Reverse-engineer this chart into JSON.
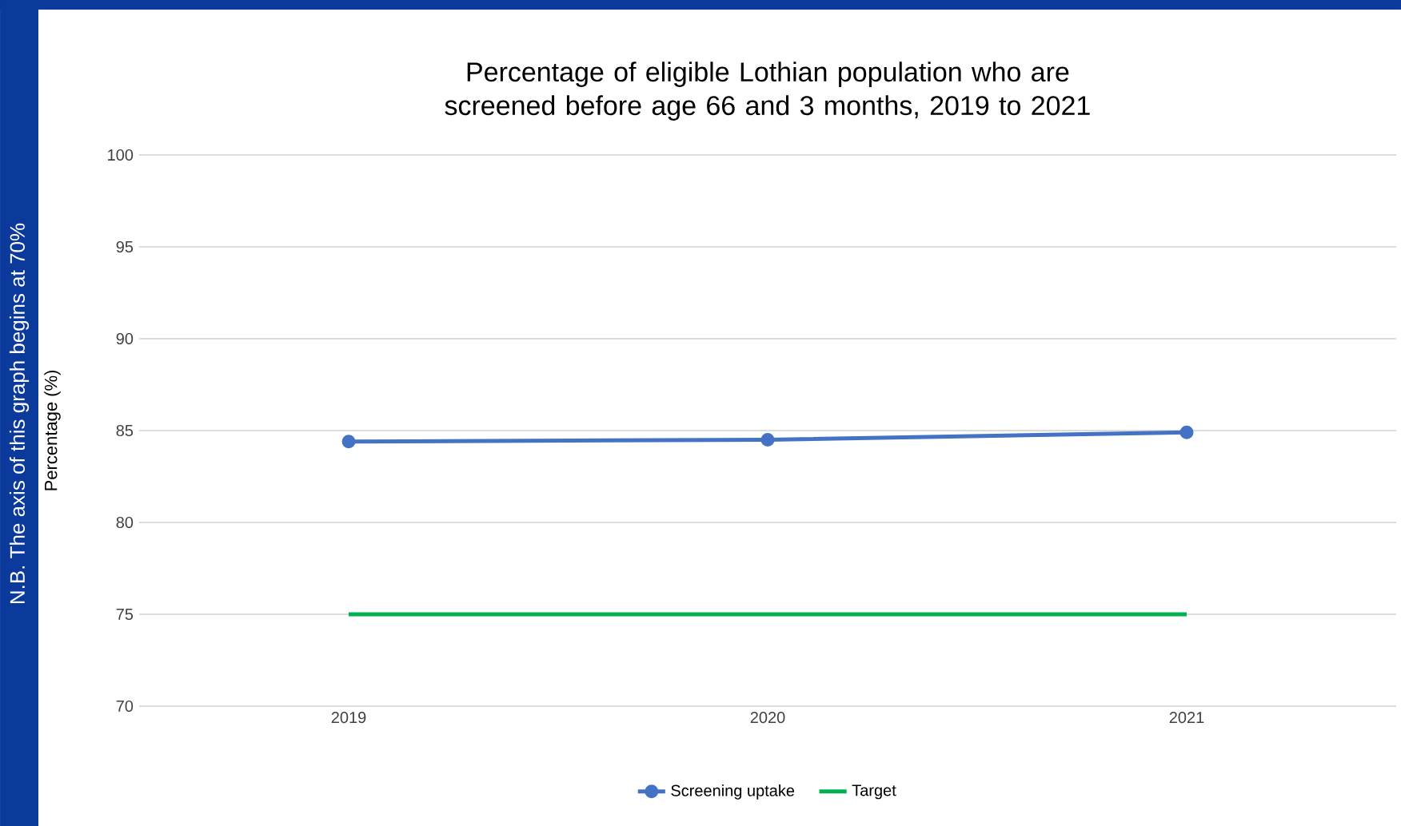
{
  "chart_data": {
    "type": "line",
    "title": "Percentage of eligible Lothian population who are screened before age 66 and 3 months, 2019 to 2021",
    "ylabel": "Percentage (%)",
    "annotations": [
      "N.B. The axis of this graph begins at 70%"
    ],
    "categories": [
      "2019",
      "2020",
      "2021"
    ],
    "series": [
      {
        "name": "Screening uptake",
        "color": "#4472c4",
        "values": [
          84.4,
          84.5,
          84.9
        ],
        "marker": "circle"
      },
      {
        "name": "Target",
        "color": "#00b050",
        "values": [
          75,
          75,
          75
        ],
        "marker": "none"
      }
    ],
    "ylim": [
      70,
      100
    ],
    "yticks": [
      70,
      75,
      80,
      85,
      90,
      95,
      100
    ],
    "grid": "y",
    "legend": "bottom"
  }
}
